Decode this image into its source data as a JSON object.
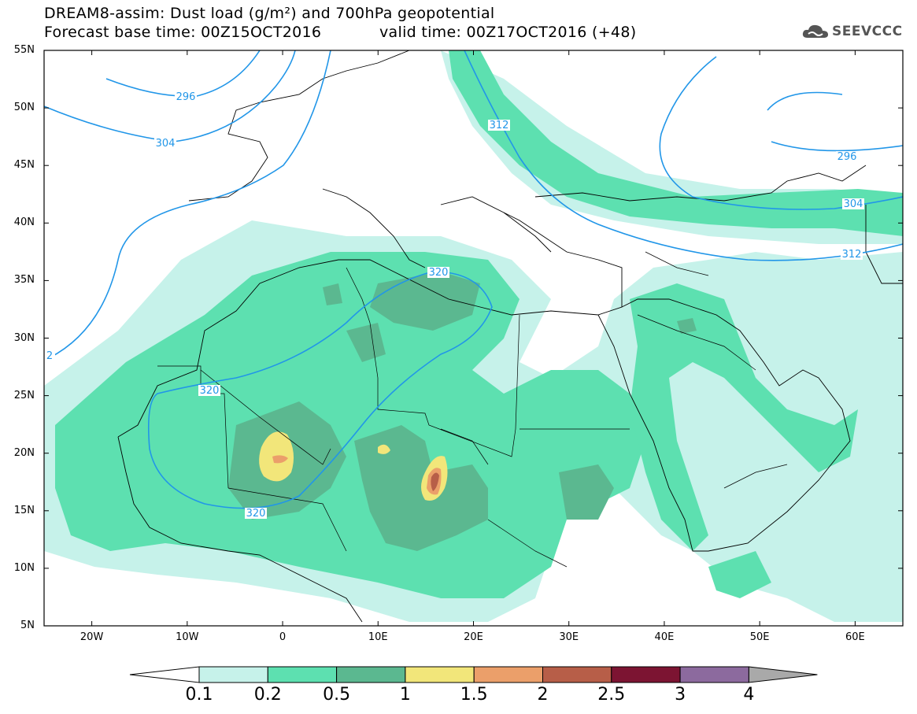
{
  "header": {
    "title_line1": "DREAM8-assim: Dust load (g/m²) and 700hPa geopotential",
    "title_line2": "Forecast base time: 00Z15OCT2016",
    "valid_time": "valid time: 00Z17OCT2016 (+48)"
  },
  "logo": {
    "text": "SEEVCCC",
    "icon": "cloud-icon"
  },
  "map": {
    "lat_labels": [
      "55N",
      "50N",
      "45N",
      "40N",
      "35N",
      "30N",
      "25N",
      "20N",
      "15N",
      "10N",
      "5N"
    ],
    "lon_labels": [
      "20W",
      "10W",
      "0",
      "10E",
      "20E",
      "30E",
      "40E",
      "50E",
      "60E"
    ],
    "extent": {
      "lon_min": -25,
      "lon_max": 65,
      "lat_min": 5,
      "lat_max": 55
    },
    "contour_labels": [
      "296",
      "304",
      "312",
      "320",
      "320",
      "320",
      "2",
      "296",
      "304",
      "312"
    ]
  },
  "colorbar": {
    "labels": [
      "0.1",
      "0.2",
      "0.5",
      "1",
      "1.5",
      "2",
      "2.5",
      "3",
      "4"
    ],
    "colors": [
      "#c6f2ea",
      "#5de0b0",
      "#5bb890",
      "#f2e67a",
      "#eb9f6a",
      "#b75e48",
      "#7c1432",
      "#8c6a9e",
      "#a9a9a9"
    ]
  },
  "colors": {
    "contour": "#2196e8",
    "border": "#000000"
  }
}
